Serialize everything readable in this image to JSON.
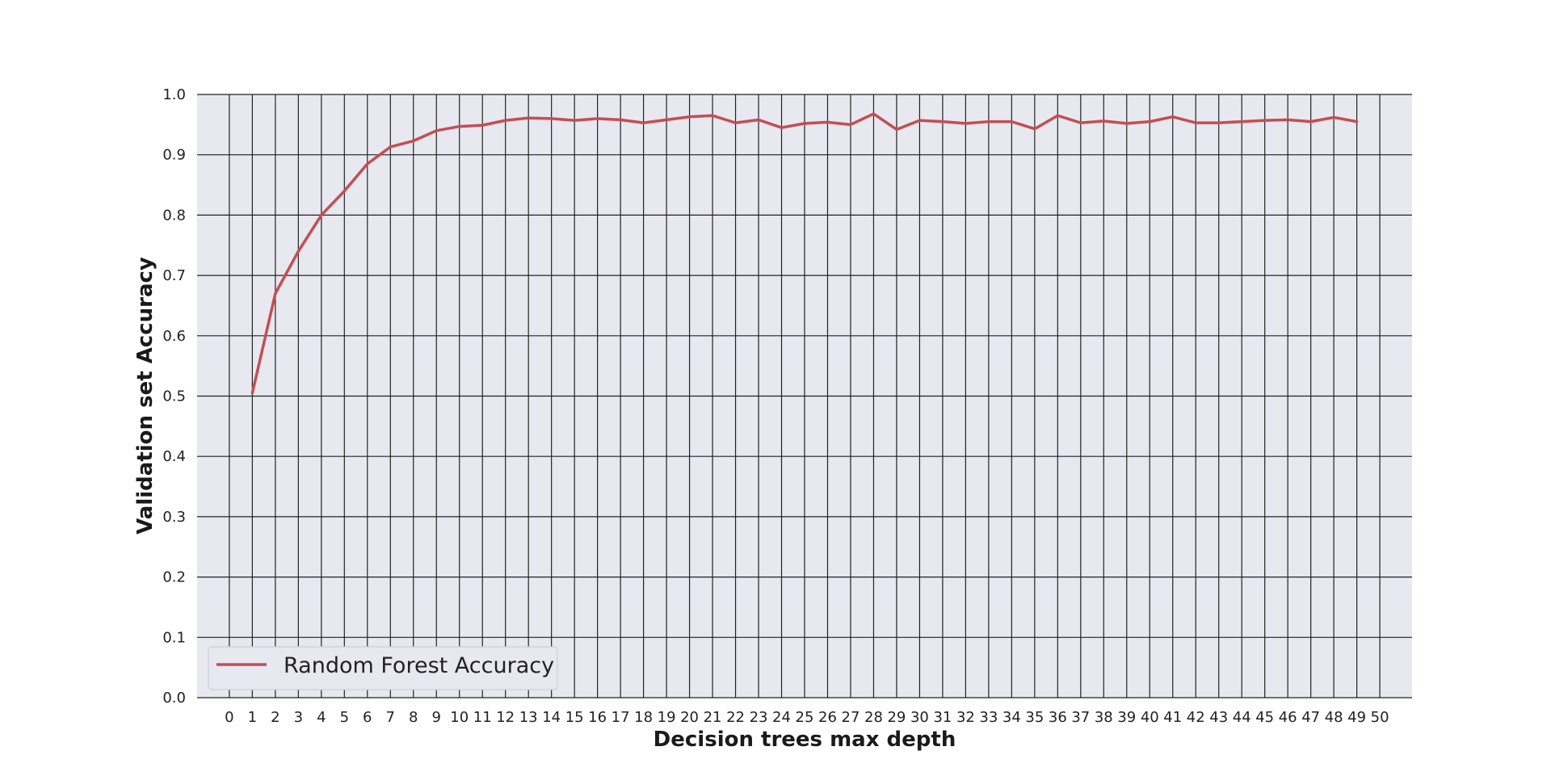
{
  "chart_data": {
    "type": "line",
    "xlabel": "Decision trees max depth",
    "ylabel": "Validation set Accuracy",
    "x_ticks": [
      0,
      1,
      2,
      3,
      4,
      5,
      6,
      7,
      8,
      9,
      10,
      11,
      12,
      13,
      14,
      15,
      16,
      17,
      18,
      19,
      20,
      21,
      22,
      23,
      24,
      25,
      26,
      27,
      28,
      29,
      30,
      31,
      32,
      33,
      34,
      35,
      36,
      37,
      38,
      39,
      40,
      41,
      42,
      43,
      44,
      45,
      46,
      47,
      48,
      49,
      50
    ],
    "y_ticks": [
      "0.0",
      "0.1",
      "0.2",
      "0.3",
      "0.4",
      "0.5",
      "0.6",
      "0.7",
      "0.8",
      "0.9",
      "1.0"
    ],
    "xlim": [
      -1.4,
      51.4
    ],
    "ylim": [
      0.0,
      1.0
    ],
    "grid": true,
    "legend_position": "lower-left",
    "colors": {
      "plot_background": "#e8e8f0",
      "grid": "#222222",
      "series": "#c44e52"
    },
    "series": [
      {
        "name": "Random Forest Accuracy",
        "x": [
          1,
          2,
          3,
          4,
          5,
          6,
          7,
          8,
          9,
          10,
          11,
          12,
          13,
          14,
          15,
          16,
          17,
          18,
          19,
          20,
          21,
          22,
          23,
          24,
          25,
          26,
          27,
          28,
          29,
          30,
          31,
          32,
          33,
          34,
          35,
          36,
          37,
          38,
          39,
          40,
          41,
          42,
          43,
          44,
          45,
          46,
          47,
          48,
          49
        ],
        "y": [
          0.505,
          0.67,
          0.74,
          0.8,
          0.84,
          0.885,
          0.913,
          0.923,
          0.94,
          0.947,
          0.949,
          0.957,
          0.961,
          0.96,
          0.957,
          0.96,
          0.958,
          0.953,
          0.958,
          0.963,
          0.965,
          0.953,
          0.958,
          0.945,
          0.952,
          0.954,
          0.95,
          0.968,
          0.942,
          0.957,
          0.955,
          0.952,
          0.955,
          0.955,
          0.943,
          0.965,
          0.953,
          0.956,
          0.952,
          0.955,
          0.963,
          0.953,
          0.953,
          0.955,
          0.957,
          0.958,
          0.955,
          0.962,
          0.955
        ]
      }
    ]
  }
}
